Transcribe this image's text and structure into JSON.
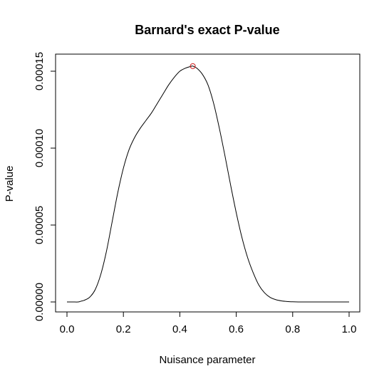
{
  "chart_data": {
    "type": "line",
    "title": "Barnard's exact P-value",
    "xlabel": "Nuisance parameter",
    "ylabel": "P-value",
    "xlim": [
      0.0,
      1.0
    ],
    "ylim": [
      0.0,
      0.00015
    ],
    "x_ticks": [
      "0.0",
      "0.2",
      "0.4",
      "0.6",
      "0.8",
      "1.0"
    ],
    "y_ticks": [
      "0.00000",
      "0.00005",
      "0.00010",
      "0.00015"
    ],
    "grid": false,
    "legend": "none",
    "series": [
      {
        "color": "#000000",
        "x": [
          0.0,
          0.02,
          0.04,
          0.05,
          0.06,
          0.08,
          0.1,
          0.12,
          0.14,
          0.16,
          0.18,
          0.2,
          0.22,
          0.24,
          0.26,
          0.28,
          0.3,
          0.32,
          0.34,
          0.36,
          0.38,
          0.4,
          0.42,
          0.44,
          0.446,
          0.46,
          0.48,
          0.5,
          0.52,
          0.54,
          0.56,
          0.58,
          0.6,
          0.62,
          0.64,
          0.66,
          0.68,
          0.7,
          0.72,
          0.74,
          0.76,
          0.78,
          0.8,
          0.82,
          0.84,
          0.9,
          1.0
        ],
        "y": [
          0.0,
          0.0,
          0.0,
          5e-07,
          1e-06,
          3e-06,
          8e-06,
          1.8e-05,
          3.3e-05,
          5.2e-05,
          7.1e-05,
          8.7e-05,
          9.9e-05,
          0.000107,
          0.000113,
          0.000118,
          0.000123,
          0.000129,
          0.000135,
          0.000141,
          0.000146,
          0.00015,
          0.000152,
          0.0001532,
          0.0001533,
          0.000152,
          0.000148,
          0.000141,
          0.000129,
          0.000113,
          9.5e-05,
          7.6e-05,
          5.8e-05,
          4.2e-05,
          2.9e-05,
          1.9e-05,
          1.1e-05,
          6e-06,
          3e-06,
          1.5e-06,
          7e-07,
          3e-07,
          1e-07,
          0.0,
          0.0,
          0.0,
          0.0
        ]
      }
    ],
    "marker": {
      "x": 0.446,
      "y": 0.0001533,
      "shape": "open-circle",
      "color": "#d02020"
    }
  }
}
